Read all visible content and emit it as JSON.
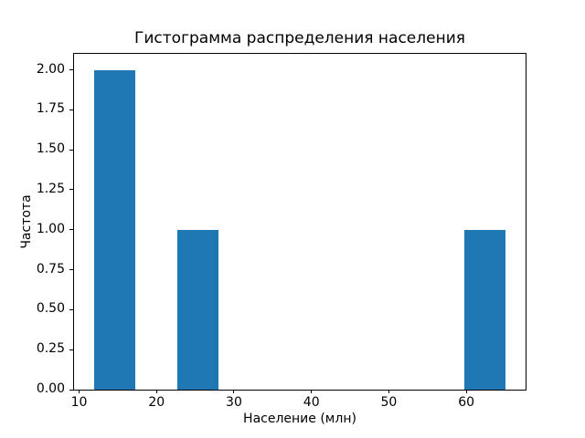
{
  "chart_data": {
    "type": "bar",
    "chart_kind": "histogram",
    "title": "Гистограмма распределения населения",
    "xlabel": "Население (млн)",
    "ylabel": "Частота",
    "xlim": [
      9.35,
      67.65
    ],
    "ylim": [
      0,
      2.1
    ],
    "x_ticks": [
      10,
      20,
      30,
      40,
      50,
      60
    ],
    "y_ticks": [
      0.0,
      0.25,
      0.5,
      0.75,
      1.0,
      1.25,
      1.5,
      1.75,
      2.0
    ],
    "y_tick_decimals": 2,
    "bars": [
      {
        "x_start": 12.0,
        "x_end": 17.3,
        "frequency": 2
      },
      {
        "x_start": 22.65,
        "x_end": 27.95,
        "frequency": 1
      },
      {
        "x_start": 59.7,
        "x_end": 65.0,
        "frequency": 1
      }
    ],
    "bar_color": "#1f77b4",
    "axis_color": "#000000",
    "text_color": "#000000",
    "background_color": "#ffffff",
    "grid": false,
    "legend_position": "none"
  }
}
